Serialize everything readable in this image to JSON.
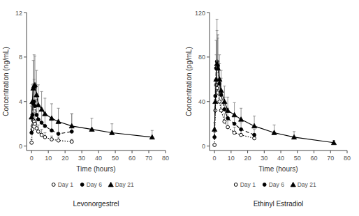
{
  "chart_data": [
    {
      "type": "line",
      "title": "Levonorgestrel",
      "x_label": "Time (hours)",
      "y_label": "Concentration (ng/mL)",
      "x": [
        0,
        0.5,
        1,
        1.5,
        2,
        3,
        4,
        6,
        8,
        12,
        16,
        24,
        36,
        48,
        72
      ],
      "xlim": [
        -3,
        80
      ],
      "xticks": [
        0,
        10,
        20,
        30,
        40,
        50,
        60,
        70,
        80
      ],
      "ylim": [
        -0.4,
        12
      ],
      "yticks": [
        0,
        4,
        8,
        12
      ],
      "series": [
        {
          "name": "Day 1",
          "color": "#000000",
          "marker": "circle-open",
          "line_style": "dotted",
          "values": [
            0.3,
            1.5,
            2.3,
            2.2,
            2.0,
            1.6,
            1.3,
            1.0,
            0.8,
            0.6,
            0.5,
            0.4,
            null,
            null,
            null
          ],
          "errors": [
            0.3,
            0.8,
            1.2,
            1.1,
            1.0,
            0.8,
            0.6,
            0.5,
            0.4,
            0.3,
            0.3,
            0.2,
            null,
            null,
            null
          ]
        },
        {
          "name": "Day 6",
          "color": "#000000",
          "marker": "circle",
          "line_style": "dashed",
          "values": [
            1.2,
            2.8,
            3.8,
            4.0,
            3.6,
            2.8,
            2.4,
            2.1,
            1.8,
            1.4,
            1.1,
            1.3,
            null,
            null,
            null
          ],
          "errors": [
            0.6,
            1.2,
            1.8,
            2.0,
            1.8,
            1.4,
            1.2,
            1.1,
            1.0,
            0.9,
            0.9,
            1.6,
            null,
            null,
            null
          ]
        },
        {
          "name": "Day 21",
          "color": "#000000",
          "marker": "triangle",
          "line_style": "solid",
          "values": [
            2.6,
            4.0,
            5.2,
            5.4,
            5.5,
            4.6,
            3.7,
            3.3,
            2.9,
            2.5,
            2.2,
            1.8,
            1.5,
            1.2,
            0.8
          ],
          "errors": [
            1.0,
            1.5,
            2.5,
            2.8,
            2.6,
            2.2,
            1.8,
            1.6,
            1.4,
            1.3,
            1.2,
            1.1,
            1.0,
            0.8,
            0.6
          ]
        }
      ]
    },
    {
      "type": "line",
      "title": "Ethinyl Estradiol",
      "x_label": "Time (hours)",
      "y_label": "Concentration (pg/mL)",
      "x": [
        0,
        0.5,
        1,
        1.5,
        2,
        3,
        4,
        6,
        8,
        12,
        16,
        24,
        36,
        48,
        72
      ],
      "xlim": [
        -3,
        80
      ],
      "xticks": [
        0,
        10,
        20,
        30,
        40,
        50,
        60,
        70,
        80
      ],
      "ylim": [
        -4,
        120
      ],
      "yticks": [
        0,
        40,
        80,
        120
      ],
      "series": [
        {
          "name": "Day 1",
          "color": "#000000",
          "marker": "circle-open",
          "line_style": "dotted",
          "values": [
            1,
            32,
            55,
            52,
            48,
            40,
            32,
            22,
            17,
            12,
            10,
            7,
            null,
            null,
            null
          ],
          "errors": [
            1,
            10,
            15,
            14,
            13,
            11,
            9,
            7,
            6,
            5,
            4,
            3,
            null,
            null,
            null
          ]
        },
        {
          "name": "Day 6",
          "color": "#000000",
          "marker": "circle",
          "line_style": "dashed",
          "values": [
            8,
            45,
            70,
            76,
            72,
            56,
            46,
            33,
            25,
            20,
            15,
            10,
            null,
            null,
            null
          ],
          "errors": [
            4,
            15,
            25,
            28,
            25,
            18,
            15,
            11,
            9,
            7,
            6,
            5,
            null,
            null,
            null
          ]
        },
        {
          "name": "Day 21",
          "color": "#000000",
          "marker": "triangle",
          "line_style": "solid",
          "values": [
            15,
            40,
            60,
            74,
            70,
            60,
            50,
            40,
            32,
            28,
            24,
            18,
            12,
            8,
            3
          ],
          "errors": [
            6,
            14,
            22,
            40,
            30,
            22,
            18,
            14,
            12,
            11,
            10,
            9,
            7,
            5,
            2
          ]
        }
      ]
    }
  ]
}
